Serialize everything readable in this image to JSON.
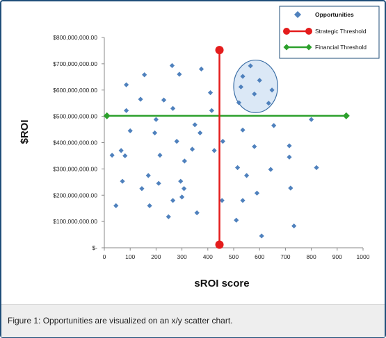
{
  "caption": "Figure 1: Opportunities are visualized on an x/y scatter chart.",
  "colors": {
    "opportunities": "#4f81bd",
    "strategic": "#e41c1c",
    "financial": "#2ca02c",
    "ellipse_fill": "#dbe8f6",
    "ellipse_stroke": "#3b6ea5",
    "frame": "#1f4e79"
  },
  "chart_data": {
    "type": "scatter",
    "xlabel": "sROI score",
    "ylabel": "$ROI",
    "xlim": [
      0,
      1000
    ],
    "ylim": [
      0,
      800000000
    ],
    "x_ticks": [
      0,
      100,
      200,
      300,
      400,
      500,
      600,
      700,
      800,
      900,
      1000
    ],
    "y_ticks": [
      0,
      100000000,
      200000000,
      300000000,
      400000000,
      500000000,
      600000000,
      700000000,
      800000000
    ],
    "x_tick_labels": [
      "0",
      "100",
      "200",
      "300",
      "400",
      "500",
      "600",
      "700",
      "800",
      "900",
      "1000"
    ],
    "y_tick_labels": [
      "$-",
      "$100,000,000.00",
      "$200,000,000.00",
      "$300,000,000.00",
      "$400,000,000.00",
      "$500,000,000.00",
      "$600,000,000.00",
      "$700,000,000.00",
      "$800,000,000.00"
    ],
    "legend_position": "top-right",
    "grid": false,
    "series": [
      {
        "name": "Opportunities",
        "marker": "diamond",
        "points": [
          [
            30,
            352000000
          ],
          [
            45,
            160000000
          ],
          [
            65,
            370000000
          ],
          [
            70,
            253000000
          ],
          [
            80,
            350000000
          ],
          [
            85,
            522000000
          ],
          [
            85,
            620000000
          ],
          [
            100,
            445000000
          ],
          [
            140,
            565000000
          ],
          [
            145,
            225000000
          ],
          [
            155,
            658000000
          ],
          [
            170,
            275000000
          ],
          [
            175,
            160000000
          ],
          [
            195,
            437000000
          ],
          [
            200,
            488000000
          ],
          [
            210,
            245000000
          ],
          [
            215,
            352000000
          ],
          [
            230,
            562000000
          ],
          [
            248,
            118000000
          ],
          [
            262,
            693000000
          ],
          [
            265,
            530000000
          ],
          [
            265,
            180000000
          ],
          [
            280,
            405000000
          ],
          [
            290,
            660000000
          ],
          [
            295,
            253000000
          ],
          [
            300,
            193000000
          ],
          [
            308,
            225000000
          ],
          [
            310,
            330000000
          ],
          [
            340,
            375000000
          ],
          [
            350,
            468000000
          ],
          [
            358,
            133000000
          ],
          [
            370,
            437000000
          ],
          [
            375,
            680000000
          ],
          [
            410,
            590000000
          ],
          [
            415,
            522000000
          ],
          [
            425,
            370000000
          ],
          [
            455,
            180000000
          ],
          [
            458,
            405000000
          ],
          [
            510,
            105000000
          ],
          [
            515,
            305000000
          ],
          [
            520,
            552000000
          ],
          [
            528,
            612000000
          ],
          [
            535,
            652000000
          ],
          [
            535,
            448000000
          ],
          [
            535,
            180000000
          ],
          [
            550,
            275000000
          ],
          [
            565,
            692000000
          ],
          [
            580,
            385000000
          ],
          [
            580,
            585000000
          ],
          [
            590,
            208000000
          ],
          [
            600,
            637000000
          ],
          [
            608,
            45000000
          ],
          [
            635,
            550000000
          ],
          [
            643,
            298000000
          ],
          [
            648,
            600000000
          ],
          [
            655,
            465000000
          ],
          [
            715,
            388000000
          ],
          [
            715,
            345000000
          ],
          [
            720,
            227000000
          ],
          [
            733,
            83000000
          ],
          [
            800,
            488000000
          ],
          [
            820,
            305000000
          ]
        ]
      },
      {
        "name": "Strategic Threshold",
        "marker": "circle",
        "points": [
          [
            445,
            752000000
          ],
          [
            445,
            12000000
          ]
        ]
      },
      {
        "name": "Financial Threshold",
        "marker": "diamond",
        "points": [
          [
            10,
            502000000
          ],
          [
            935,
            502000000
          ]
        ]
      }
    ],
    "highlight_region": {
      "cx": 585,
      "cy": 614000000,
      "rx": 85,
      "ry": 100000000
    }
  }
}
